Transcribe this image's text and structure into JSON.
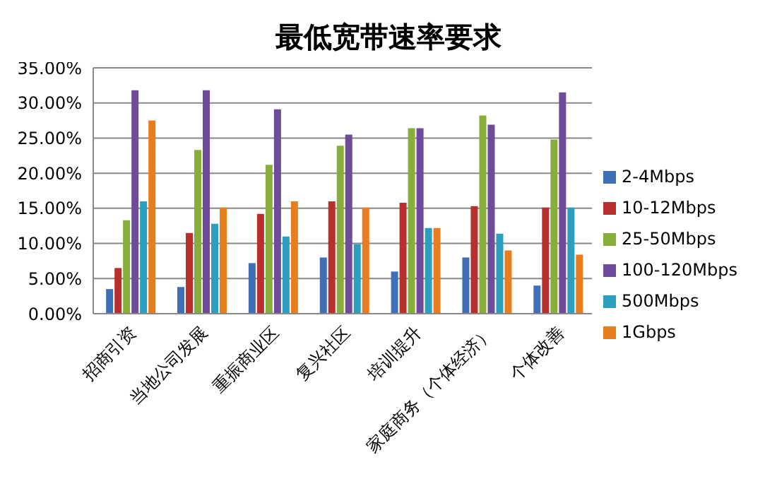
{
  "chart_data": {
    "type": "bar",
    "title": "最低宽带速率要求",
    "categories": [
      "招商引资",
      "当地公司发展",
      "重振商业区",
      "复兴社区",
      "培训提升",
      "家庭商务（个体经济）",
      "个体改善"
    ],
    "series": [
      {
        "name": "2-4Mbps",
        "color": "#3f6fb5",
        "values": [
          3.5,
          3.8,
          7.2,
          8,
          6,
          8,
          4
        ]
      },
      {
        "name": "10-12Mbps",
        "color": "#b8302e",
        "values": [
          6.5,
          11.5,
          14.2,
          16,
          15.8,
          15.3,
          15.1
        ]
      },
      {
        "name": "25-50Mbps",
        "color": "#87ad3a",
        "values": [
          13.3,
          23.3,
          21.2,
          23.9,
          26.4,
          28.2,
          24.8
        ]
      },
      {
        "name": "100-120Mbps",
        "color": "#6e4c9a",
        "values": [
          31.8,
          31.8,
          29.1,
          25.5,
          26.4,
          26.9,
          31.5
        ]
      },
      {
        "name": "500Mbps",
        "color": "#2b9fbd",
        "values": [
          16,
          12.8,
          11,
          9.9,
          12.2,
          11.4,
          15.1
        ]
      },
      {
        "name": "1Gbps",
        "color": "#e87d1e",
        "values": [
          27.5,
          15.1,
          16,
          15.1,
          12.2,
          9,
          8.4
        ]
      }
    ],
    "ylim": [
      0,
      35
    ],
    "yticks": [
      {
        "value": 0,
        "label": "0.00%"
      },
      {
        "value": 5,
        "label": "5.00%"
      },
      {
        "value": 10,
        "label": "10.00%"
      },
      {
        "value": 15,
        "label": "15.00%"
      },
      {
        "value": 20,
        "label": "20.00%"
      },
      {
        "value": 25,
        "label": "25.00%"
      },
      {
        "value": 30,
        "label": "30.00%"
      },
      {
        "value": 35,
        "label": "35.00%"
      }
    ],
    "grid": "y",
    "legend": "right"
  }
}
